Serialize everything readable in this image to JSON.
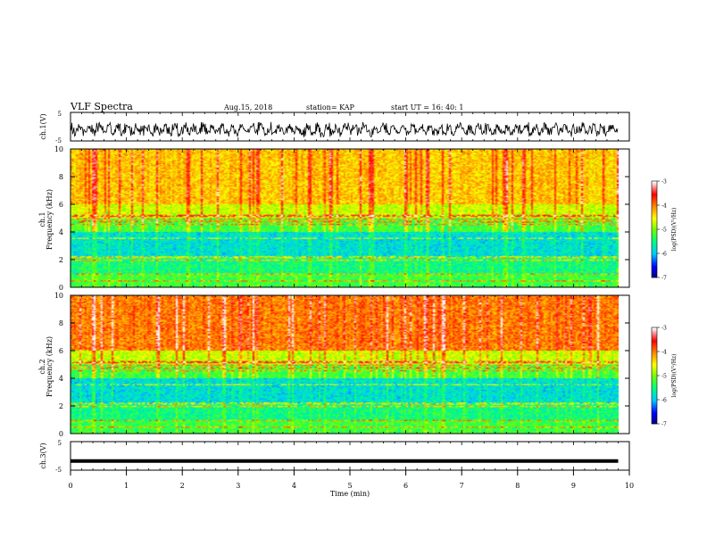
{
  "header": {
    "title": "VLF Spectra",
    "date": "Aug.15, 2018",
    "station": "station= KAP",
    "start_ut": "start  UT  =    16: 40: 1"
  },
  "colors": {
    "background": "#ffffff",
    "axis": "#000000",
    "waveform": "#000000",
    "colormap": [
      "#000080",
      "#0000ff",
      "#00bfff",
      "#00ff80",
      "#80ff00",
      "#ffff00",
      "#ff8000",
      "#ff0000",
      "#ff8080",
      "#ffffff"
    ]
  },
  "chart_data": [
    {
      "id": "ch1_waveform",
      "type": "line",
      "ylabel": "ch.1(V)",
      "ylim": [
        -5,
        5
      ],
      "yticks": [
        "5",
        "-5"
      ],
      "xlim": [
        0,
        10
      ],
      "description_series": "noisy waveform around -1 V"
    },
    {
      "id": "ch1_spectrogram",
      "type": "heatmap",
      "ylabel_line1": "ch.1",
      "ylabel_line2": "Frequency (kHz)",
      "ylim": [
        0,
        10
      ],
      "yticks": [
        "0",
        "2",
        "4",
        "6",
        "8",
        "10"
      ],
      "xlim": [
        0,
        10
      ],
      "colorbar": {
        "label": "log(PSD)(V²/Hz)",
        "range": [
          -7,
          -3
        ],
        "ticks": [
          "-3",
          "-4",
          "-5",
          "-6",
          "-7"
        ]
      }
    },
    {
      "id": "ch2_spectrogram",
      "type": "heatmap",
      "ylabel_line1": "ch.2",
      "ylabel_line2": "Frequency (kHz)",
      "ylim": [
        0,
        10
      ],
      "yticks": [
        "0",
        "2",
        "4",
        "6",
        "8",
        "10"
      ],
      "xlim": [
        0,
        10
      ],
      "colorbar": {
        "label": "log(PSD)(V²/Hz)",
        "range": [
          -7,
          -3
        ],
        "ticks": [
          "-3",
          "-4",
          "-5",
          "-6",
          "-7"
        ]
      }
    },
    {
      "id": "ch3_waveform",
      "type": "line",
      "ylabel": "ch.3(V)",
      "ylim": [
        -5,
        5
      ],
      "yticks": [
        "5",
        "-5"
      ],
      "xlim": [
        0,
        10
      ],
      "xlabel": "Time  (min)",
      "xticks": [
        "0",
        "1",
        "2",
        "3",
        "4",
        "5",
        "6",
        "7",
        "8",
        "9",
        "10"
      ],
      "constant_value": -1.8
    }
  ]
}
